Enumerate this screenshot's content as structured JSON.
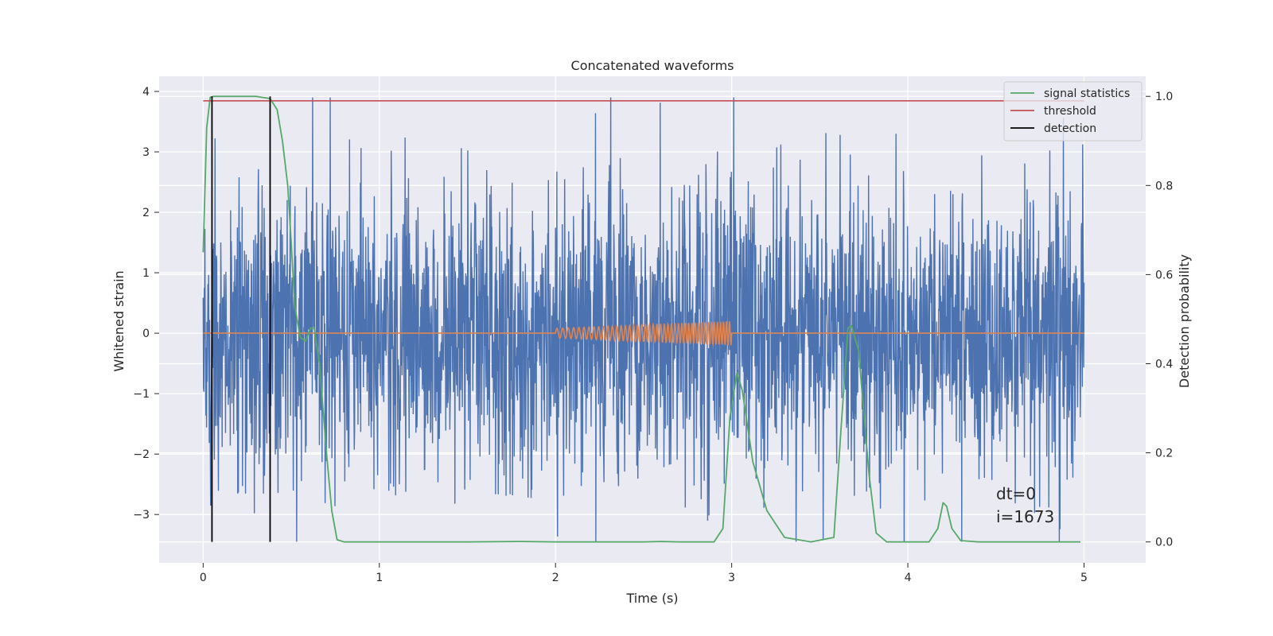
{
  "chart_data": {
    "type": "line",
    "title": "Concatenated waveforms",
    "xlabel": "Time (s)",
    "ylabel": "Whitened strain",
    "y2label": "Detection probability",
    "xlim": [
      -0.25,
      5.35
    ],
    "ylim": [
      -3.8,
      4.25
    ],
    "y2lim": [
      -0.047,
      1.045
    ],
    "xticks": [
      0,
      1,
      2,
      3,
      4,
      5
    ],
    "xtick_labels": [
      "0",
      "1",
      "2",
      "3",
      "4",
      "5"
    ],
    "yticks": [
      -3,
      -2,
      -1,
      0,
      1,
      2,
      3,
      4
    ],
    "ytick_labels": [
      "−3",
      "−2",
      "−1",
      "0",
      "1",
      "2",
      "3",
      "4"
    ],
    "y2ticks": [
      0.0,
      0.2,
      0.4,
      0.6,
      0.8,
      1.0
    ],
    "y2tick_labels": [
      "0.0",
      "0.2",
      "0.4",
      "0.6",
      "0.8",
      "1.0"
    ],
    "grid": true,
    "legend_position": "top-right",
    "series": [
      {
        "name": "",
        "kind": "noise",
        "axis": "left",
        "color": "#4c72b0",
        "x_range": [
          0,
          5
        ],
        "typical_amplitude": 1.2,
        "peak_range": [
          -3.45,
          3.9
        ]
      },
      {
        "name": "",
        "kind": "chirp",
        "axis": "left",
        "color": "#dd8452",
        "x_range": [
          0,
          5
        ],
        "chirp_interval": [
          2.0,
          3.0
        ],
        "amplitude_start": 0.08,
        "amplitude_end": 0.2,
        "frequency_start_hz": 30,
        "frequency_end_hz": 60
      },
      {
        "name": "signal statistics",
        "axis": "right",
        "color": "#55a868",
        "x": [
          0,
          0.02,
          0.04,
          0.06,
          0.1,
          0.2,
          0.3,
          0.38,
          0.42,
          0.45,
          0.48,
          0.5,
          0.52,
          0.55,
          0.58,
          0.61,
          0.63,
          0.66,
          0.7,
          0.73,
          0.76,
          0.8,
          1.0,
          1.5,
          1.8,
          2.0,
          2.5,
          2.6,
          2.7,
          2.9,
          2.95,
          2.99,
          3.03,
          3.06,
          3.12,
          3.2,
          3.3,
          3.45,
          3.58,
          3.62,
          3.66,
          3.68,
          3.72,
          3.78,
          3.82,
          3.88,
          4.0,
          4.12,
          4.17,
          4.2,
          4.22,
          4.25,
          4.3,
          4.4,
          4.6,
          4.98
        ],
        "values": [
          0.65,
          0.93,
          0.998,
          1.0,
          1.0,
          1.0,
          1.0,
          0.995,
          0.97,
          0.9,
          0.8,
          0.67,
          0.53,
          0.46,
          0.45,
          0.48,
          0.48,
          0.4,
          0.2,
          0.07,
          0.005,
          0.0,
          0.0,
          0.0,
          0.001,
          0.0,
          0.0,
          0.001,
          0.0,
          0.0,
          0.03,
          0.28,
          0.38,
          0.34,
          0.18,
          0.07,
          0.01,
          0.0,
          0.01,
          0.25,
          0.48,
          0.485,
          0.43,
          0.15,
          0.02,
          0.0,
          0.0,
          0.0,
          0.03,
          0.088,
          0.08,
          0.03,
          0.003,
          0.0,
          0.0,
          0.0
        ]
      },
      {
        "name": "threshold",
        "axis": "right",
        "color": "#c44e52",
        "x": [
          0,
          5
        ],
        "values": [
          0.99,
          0.99
        ]
      },
      {
        "name": "detection",
        "kind": "vlines",
        "axis": "right",
        "color": "#000000",
        "x": [
          0.05,
          0.38
        ],
        "y_range": [
          0,
          1
        ]
      }
    ],
    "annotations": [
      "dt=0",
      "i=1673"
    ]
  }
}
